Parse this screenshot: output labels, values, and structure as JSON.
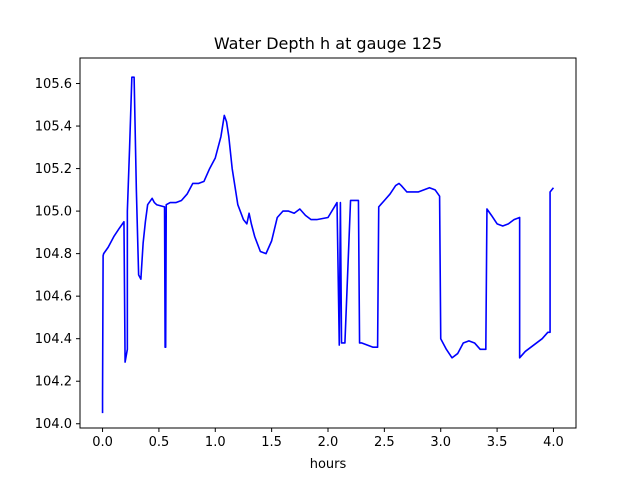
{
  "chart_data": {
    "type": "line",
    "title": "Water Depth h at gauge 125",
    "xlabel": "hours",
    "ylabel": "",
    "xlim": [
      -0.2,
      4.2
    ],
    "ylim": [
      103.98,
      105.72
    ],
    "xticks": [
      0.0,
      0.5,
      1.0,
      1.5,
      2.0,
      2.5,
      3.0,
      3.5,
      4.0
    ],
    "xtick_labels": [
      "0.0",
      "0.5",
      "1.0",
      "1.5",
      "2.0",
      "2.5",
      "3.0",
      "3.5",
      "4.0"
    ],
    "yticks": [
      104.0,
      104.2,
      104.4,
      104.6,
      104.8,
      105.0,
      105.2,
      105.4,
      105.6
    ],
    "ytick_labels": [
      "104.0",
      "104.2",
      "104.4",
      "104.6",
      "104.8",
      "105.0",
      "105.2",
      "105.4",
      "105.6"
    ],
    "grid": false,
    "legend": "none",
    "series": [
      {
        "color": "#0000ff",
        "x": [
          0.0,
          0.0,
          0.005,
          0.01,
          0.05,
          0.1,
          0.15,
          0.19,
          0.2,
          0.2,
          0.22,
          0.22,
          0.24,
          0.26,
          0.28,
          0.3,
          0.32,
          0.34,
          0.36,
          0.38,
          0.4,
          0.44,
          0.46,
          0.48,
          0.55,
          0.555,
          0.56,
          0.565,
          0.6,
          0.65,
          0.7,
          0.75,
          0.8,
          0.85,
          0.9,
          0.95,
          1.0,
          1.05,
          1.08,
          1.1,
          1.12,
          1.15,
          1.2,
          1.25,
          1.28,
          1.3,
          1.32,
          1.35,
          1.4,
          1.45,
          1.5,
          1.55,
          1.6,
          1.65,
          1.7,
          1.75,
          1.8,
          1.85,
          1.9,
          2.0,
          2.08,
          2.1,
          2.11,
          2.12,
          2.13,
          2.14,
          2.15,
          2.2,
          2.2,
          2.26,
          2.27,
          2.28,
          2.3,
          2.35,
          2.4,
          2.44,
          2.45,
          2.5,
          2.55,
          2.6,
          2.63,
          2.65,
          2.7,
          2.8,
          2.85,
          2.9,
          2.95,
          2.99,
          3.0,
          3.05,
          3.1,
          3.15,
          3.2,
          3.25,
          3.3,
          3.35,
          3.4,
          3.41,
          3.45,
          3.5,
          3.55,
          3.6,
          3.65,
          3.7,
          3.7,
          3.75,
          3.8,
          3.85,
          3.9,
          3.95,
          3.97,
          3.97,
          4.0
        ],
        "y": [
          104.05,
          104.13,
          104.79,
          104.8,
          104.83,
          104.88,
          104.92,
          104.95,
          104.29,
          104.29,
          104.35,
          105.0,
          105.3,
          105.63,
          105.63,
          105.1,
          104.7,
          104.68,
          104.85,
          104.95,
          105.03,
          105.06,
          105.04,
          105.03,
          105.02,
          104.36,
          104.36,
          105.03,
          105.04,
          105.04,
          105.05,
          105.08,
          105.13,
          105.13,
          105.14,
          105.2,
          105.25,
          105.35,
          105.45,
          105.42,
          105.35,
          105.2,
          105.03,
          104.96,
          104.94,
          104.99,
          104.94,
          104.88,
          104.81,
          104.8,
          104.86,
          104.97,
          105.0,
          105.0,
          104.99,
          105.01,
          104.98,
          104.96,
          104.96,
          104.97,
          105.04,
          104.37,
          105.04,
          104.38,
          104.38,
          104.38,
          104.38,
          105.05,
          105.05,
          105.05,
          105.05,
          104.38,
          104.38,
          104.37,
          104.36,
          104.36,
          105.02,
          105.05,
          105.08,
          105.12,
          105.13,
          105.12,
          105.09,
          105.09,
          105.1,
          105.11,
          105.1,
          105.07,
          104.4,
          104.35,
          104.31,
          104.33,
          104.38,
          104.39,
          104.38,
          104.35,
          104.35,
          105.01,
          104.98,
          104.94,
          104.93,
          104.94,
          104.96,
          104.97,
          104.31,
          104.34,
          104.36,
          104.38,
          104.4,
          104.43,
          104.43,
          105.09,
          105.11
        ]
      }
    ]
  }
}
